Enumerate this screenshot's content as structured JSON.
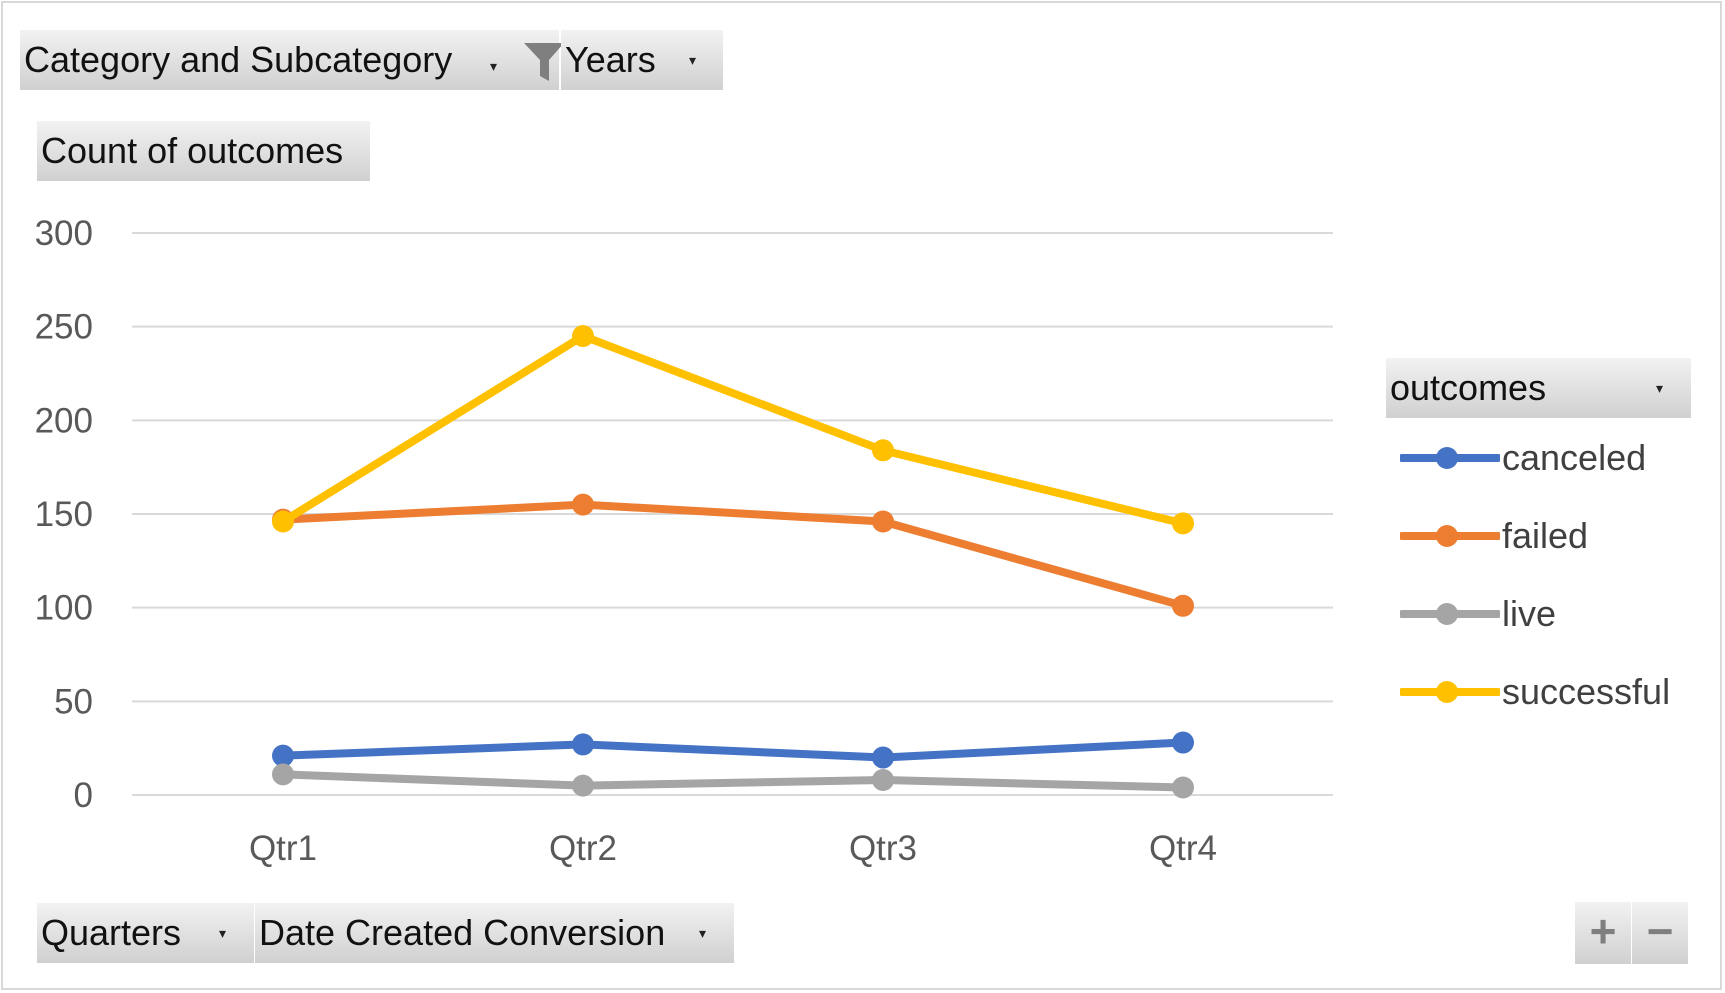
{
  "field_buttons": {
    "category": "Category  and  Subcategory",
    "years": "Years",
    "count": "Count  of  outcomes",
    "quarters": "Quarters",
    "date_created": "Date  Created  Conversion"
  },
  "legend": {
    "title": "outcomes"
  },
  "zoom": {
    "plus": "+",
    "minus": "−"
  },
  "icons": [
    "filter-icon",
    "dropdown-arrow-icon"
  ],
  "colors": {
    "canceled": "#4472C4",
    "failed": "#ED7D31",
    "live": "#A5A5A5",
    "successful": "#FFC000",
    "gridline": "#d9d9d9",
    "axis_text": "#595959"
  },
  "chart_data": {
    "type": "line",
    "title": "",
    "xlabel": "",
    "ylabel": "",
    "categories": [
      "Qtr1",
      "Qtr2",
      "Qtr3",
      "Qtr4"
    ],
    "ylim": [
      0,
      300
    ],
    "yticks": [
      0,
      50,
      100,
      150,
      200,
      250,
      300
    ],
    "grid": true,
    "legend_position": "right",
    "series": [
      {
        "name": "canceled",
        "values": [
          21,
          27,
          20,
          28
        ]
      },
      {
        "name": "failed",
        "values": [
          147,
          155,
          146,
          101
        ]
      },
      {
        "name": "live",
        "values": [
          11,
          5,
          8,
          4
        ]
      },
      {
        "name": "successful",
        "values": [
          146,
          245,
          184,
          145
        ]
      }
    ]
  }
}
